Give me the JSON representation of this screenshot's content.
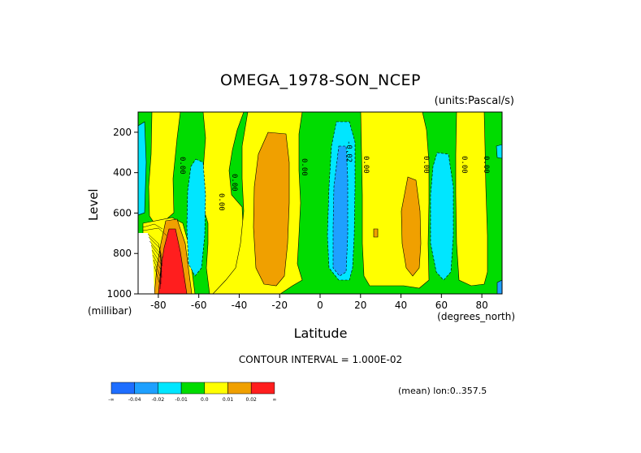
{
  "chart_data": {
    "type": "heatmap",
    "title": "OMEGA_1978-SON_NCEP",
    "units_label": "(units:Pascal/s)",
    "xlabel": "Latitude",
    "xunit": "(degrees_north)",
    "ylabel": "Level",
    "yunit": "(millibar)",
    "xlim": [
      -90,
      90
    ],
    "ylim": [
      1000,
      100
    ],
    "x_ticks": [
      -80,
      -60,
      -40,
      -20,
      0,
      20,
      40,
      60,
      80
    ],
    "y_ticks": [
      200,
      400,
      600,
      800,
      1000
    ],
    "contour_interval_text": "CONTOUR INTERVAL = 1.000E-02",
    "contour_label": "0.00",
    "contour_label_neg": "-0.02",
    "mean_text": "(mean) lon:0..357.5",
    "colorbar": {
      "labels": [
        "-∞",
        "-0.04",
        "-0.02",
        "-0.01",
        "0.0",
        "0.01",
        "0.02",
        "∞"
      ],
      "colors": [
        "#1e6eff",
        "#1ea0ff",
        "#00e6ff",
        "#00dc00",
        "#ffff00",
        "#f0a000",
        "#ff1e1e"
      ]
    },
    "features": [
      {
        "lat_range": [
          -90,
          -85
        ],
        "level_range": [
          100,
          600
        ],
        "bin": 3
      },
      {
        "lat_range": [
          -78,
          -70
        ],
        "level_range": [
          680,
          1000
        ],
        "bin": 7
      },
      {
        "lat_range": [
          -68,
          -60
        ],
        "level_range": [
          250,
          1000
        ],
        "bin": 3
      },
      {
        "lat_range": [
          -30,
          -10
        ],
        "level_range": [
          200,
          980
        ],
        "bin": 6
      },
      {
        "lat_range": [
          5,
          15
        ],
        "level_range": [
          150,
          960
        ],
        "bin": 2
      },
      {
        "lat_range": [
          8,
          12
        ],
        "level_range": [
          400,
          850
        ],
        "bin": 1
      },
      {
        "lat_range": [
          50,
          65
        ],
        "level_range": [
          200,
          970
        ],
        "bin": 3
      },
      {
        "lat_range": [
          30,
          40
        ],
        "level_range": [
          450,
          960
        ],
        "bin": 6
      },
      {
        "lat_range": [
          -90,
          -80
        ],
        "level_range": [
          700,
          1000
        ],
        "bin": "missing"
      }
    ]
  }
}
